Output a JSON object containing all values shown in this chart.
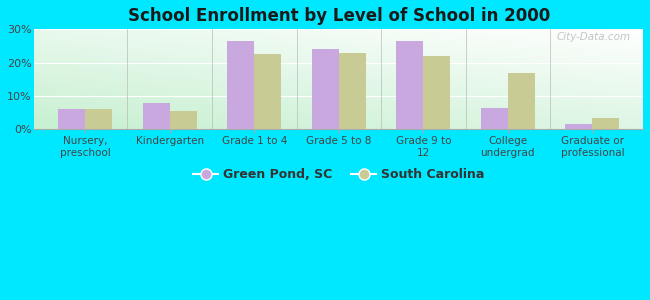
{
  "title": "School Enrollment by Level of School in 2000",
  "categories": [
    "Nursery,\npreschool",
    "Kindergarten",
    "Grade 1 to 4",
    "Grade 5 to 8",
    "Grade 9 to\n12",
    "College\nundergrad",
    "Graduate or\nprofessional"
  ],
  "green_pond": [
    6.0,
    8.0,
    26.5,
    24.0,
    26.5,
    6.5,
    1.5
  ],
  "south_carolina": [
    6.2,
    5.5,
    22.5,
    23.0,
    22.0,
    17.0,
    3.5
  ],
  "color_gp": "#c9a8e0",
  "color_sc": "#c8cc94",
  "background_fig": "#00e8ff",
  "ylim": [
    0,
    30
  ],
  "yticks": [
    0,
    10,
    20,
    30
  ],
  "ytick_labels": [
    "0%",
    "10%",
    "20%",
    "30%"
  ],
  "legend_gp": "Green Pond, SC",
  "legend_sc": "South Carolina",
  "watermark": "City-Data.com",
  "bar_width": 0.32
}
